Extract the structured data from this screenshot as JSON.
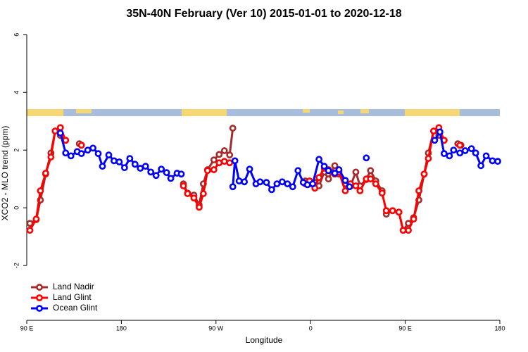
{
  "chart_data": {
    "type": "line",
    "title": "35N-40N February (Ver 10)   2015-01-01 to 2020-12-18",
    "x_label": "Longitude",
    "y_label": "XCO2 - MLO trend (ppm)",
    "xlim": [
      90,
      540
    ],
    "ylim": [
      -3.9,
      6.3
    ],
    "xticks": [
      {
        "value": 90,
        "label": "90 E"
      },
      180,
      {
        "value": 270,
        "label": "90 W"
      },
      {
        "value": 360,
        "label": "0"
      },
      {
        "value": 450,
        "label": "90 E"
      },
      {
        "value": 540,
        "label": "180"
      }
    ],
    "yticks": [
      -2,
      0,
      2,
      4,
      6
    ],
    "legend": "bottom-left",
    "series": [
      {
        "name": "Land Nadir",
        "color": "#a52a2a",
        "x": [
          93,
          99,
          103,
          108,
          113,
          117,
          122,
          127,
          null,
          140,
          142,
          null,
          239,
          243,
          249,
          254,
          258,
          262,
          268,
          273,
          278,
          283,
          286,
          null,
          355,
          359,
          364,
          368,
          373,
          377,
          383,
          387,
          393,
          398,
          403,
          407,
          413,
          417,
          422,
          428,
          null,
          432,
          438,
          444,
          448,
          453,
          458,
          463,
          468,
          472,
          477,
          482,
          487,
          null,
          500,
          503
        ],
        "values": [
          -0.54,
          -0.41,
          0.27,
          1.17,
          1.9,
          2.66,
          2.51,
          2.34,
          null,
          2.22,
          2.17,
          null,
          0.83,
          0.51,
          0.44,
          0.1,
          0.83,
          1.32,
          1.66,
          1.85,
          1.98,
          1.83,
          2.76,
          null,
          0.93,
          0.83,
          0.88,
          0.76,
          1.24,
          1.0,
          1.46,
          1.17,
          0.83,
          0.76,
          1.24,
          0.76,
          0.98,
          1.29,
          0.93,
          0.59,
          null,
          -0.22,
          -0.1,
          -0.15,
          -0.78,
          -0.54,
          -0.34,
          0.27,
          1.17,
          1.9,
          2.66,
          2.51,
          2.34,
          null,
          2.22,
          2.17
        ]
      },
      {
        "name": "Land Glint",
        "color": "#ff0000",
        "x": [
          93,
          99,
          103,
          108,
          113,
          117,
          122,
          127,
          null,
          142,
          null,
          239,
          243,
          249,
          254,
          258,
          262,
          268,
          273,
          278,
          283,
          null,
          355,
          359,
          364,
          368,
          373,
          377,
          383,
          387,
          393,
          398,
          403,
          407,
          413,
          417,
          422,
          428,
          432,
          438,
          444,
          448,
          453,
          458,
          463,
          468,
          472,
          477,
          482,
          487,
          null,
          502
        ],
        "values": [
          -0.78,
          -0.39,
          0.59,
          1.2,
          1.76,
          2.66,
          2.78,
          2.34,
          null,
          2.17,
          null,
          0.76,
          0.49,
          0.34,
          0.02,
          0.49,
          1.29,
          1.32,
          1.56,
          1.61,
          1.56,
          null,
          0.83,
          0.93,
          0.68,
          1.05,
          1.37,
          1.32,
          1.17,
          1.24,
          0.59,
          0.83,
          0.76,
          0.59,
          1.0,
          1.0,
          0.83,
          0.51,
          -0.1,
          -0.1,
          -0.15,
          -0.78,
          -0.78,
          -0.39,
          0.59,
          1.17,
          1.71,
          2.66,
          2.78,
          2.34,
          null,
          2.17
        ]
      },
      {
        "name": "Ocean Glint",
        "color": "#0000ff",
        "x": [
          122,
          127,
          132,
          138,
          142,
          148,
          153,
          158,
          162,
          168,
          173,
          178,
          183,
          188,
          193,
          198,
          203,
          208,
          213,
          218,
          223,
          227,
          233,
          237,
          null,
          286,
          288,
          292,
          297,
          302,
          308,
          312,
          318,
          323,
          328,
          333,
          338,
          343,
          348,
          353,
          357,
          362,
          368,
          373,
          377,
          383,
          387,
          393,
          397,
          null,
          413,
          null,
          478,
          483,
          487,
          492,
          496,
          502,
          507,
          513,
          517,
          522,
          527,
          533,
          538
        ],
        "values": [
          2.59,
          1.9,
          1.8,
          1.95,
          1.88,
          2.0,
          2.07,
          1.88,
          1.44,
          1.83,
          1.63,
          1.59,
          1.39,
          1.71,
          1.51,
          1.37,
          1.44,
          1.24,
          1.12,
          1.34,
          1.22,
          1.02,
          1.2,
          1.17,
          null,
          0.73,
          1.63,
          0.93,
          0.9,
          1.34,
          0.83,
          0.9,
          0.88,
          0.63,
          0.83,
          0.9,
          0.83,
          0.73,
          1.29,
          0.88,
          0.8,
          0.83,
          1.68,
          1.44,
          1.29,
          1.2,
          1.32,
          0.95,
          0.73,
          null,
          1.73,
          null,
          2.34,
          2.63,
          1.88,
          1.8,
          2.0,
          1.9,
          1.98,
          2.05,
          1.9,
          1.46,
          1.8,
          1.63,
          1.61
        ]
      }
    ]
  }
}
